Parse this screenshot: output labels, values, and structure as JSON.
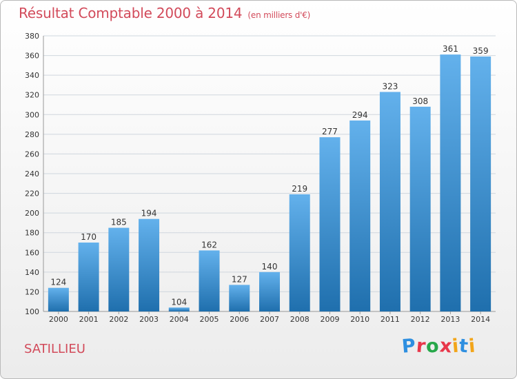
{
  "header": {
    "title": "Résultat Comptable 2000 à 2014",
    "subtitle": "(en milliers d'€)"
  },
  "commune": "SATILLIEU",
  "logo": {
    "text": "Proxiti",
    "colors": [
      "#2e8fe0",
      "#e8374a",
      "#27a84a",
      "#e8374a",
      "#f2a51a",
      "#2e8fe0",
      "#f2a51a"
    ]
  },
  "colors": {
    "title": "#d24a5a",
    "bar_top": "#63b1ec",
    "bar_bottom": "#1f6fad",
    "grid": "#cfd6de"
  },
  "chart_data": {
    "type": "bar",
    "categories": [
      "2000",
      "2001",
      "2002",
      "2003",
      "2004",
      "2005",
      "2006",
      "2007",
      "2008",
      "2009",
      "2010",
      "2011",
      "2012",
      "2013",
      "2014"
    ],
    "values": [
      124,
      170,
      185,
      194,
      104,
      162,
      127,
      140,
      219,
      277,
      294,
      323,
      308,
      361,
      359
    ],
    "ylim": [
      100,
      380
    ],
    "yticks": [
      100,
      120,
      140,
      160,
      180,
      200,
      220,
      240,
      260,
      280,
      300,
      320,
      340,
      360,
      380
    ],
    "grid": true,
    "legend": "none"
  }
}
